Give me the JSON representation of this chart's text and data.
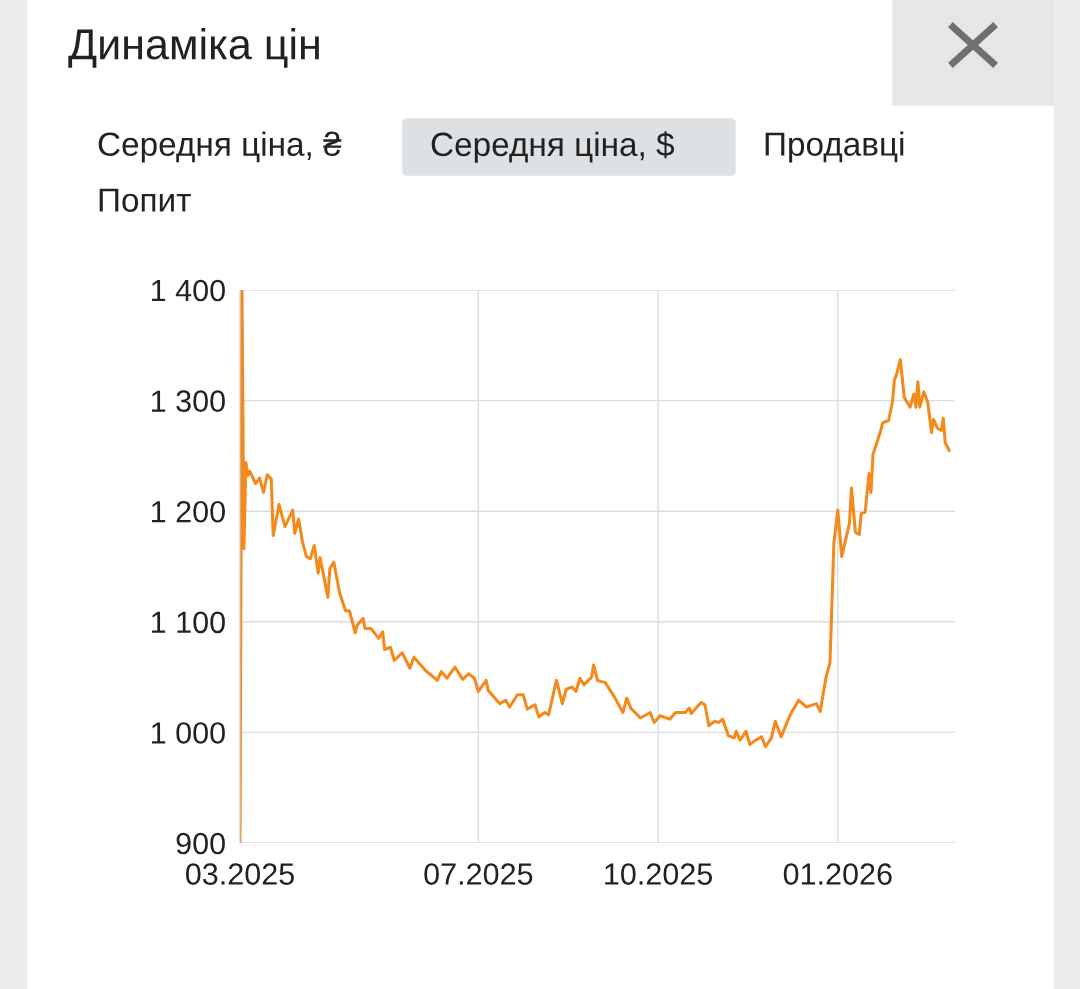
{
  "chart_data": {
    "type": "line",
    "title": "Динаміка цін",
    "annotations": [
      "Середня ціна, ₴",
      "Середня ціна, $",
      "Продавці",
      "Попит"
    ],
    "x": [
      "2025-03-01",
      "2025-03-02",
      "2025-03-03",
      "2025-03-04",
      "2025-03-05",
      "2025-03-06",
      "2025-03-09",
      "2025-03-11",
      "2025-03-13",
      "2025-03-15",
      "2025-03-17",
      "2025-03-18",
      "2025-03-21",
      "2025-03-24",
      "2025-03-28",
      "2025-03-29",
      "2025-03-31",
      "2025-04-02",
      "2025-04-04",
      "2025-04-06",
      "2025-04-08",
      "2025-04-10",
      "2025-04-11",
      "2025-04-15",
      "2025-04-16",
      "2025-04-18",
      "2025-04-21",
      "2025-04-24",
      "2025-04-26",
      "2025-04-29",
      "2025-04-30",
      "2025-05-03",
      "2025-05-04",
      "2025-05-07",
      "2025-05-11",
      "2025-05-13",
      "2025-05-14",
      "2025-05-17",
      "2025-05-19",
      "2025-05-23",
      "2025-05-27",
      "2025-05-29",
      "2025-06-04",
      "2025-06-10",
      "2025-06-12",
      "2025-06-15",
      "2025-06-19",
      "2025-06-23",
      "2025-06-26",
      "2025-06-29",
      "2025-07-01",
      "2025-07-05",
      "2025-07-06",
      "2025-07-12",
      "2025-07-15",
      "2025-07-17",
      "2025-07-21",
      "2025-07-24",
      "2025-07-26",
      "2025-07-30",
      "2025-08-01",
      "2025-08-04",
      "2025-08-06",
      "2025-08-10",
      "2025-08-13",
      "2025-08-15",
      "2025-08-18",
      "2025-08-20",
      "2025-08-22",
      "2025-08-24",
      "2025-08-28",
      "2025-08-29",
      "2025-08-31",
      "2025-09-04",
      "2025-09-09",
      "2025-09-13",
      "2025-09-15",
      "2025-09-17",
      "2025-09-22",
      "2025-09-27",
      "2025-09-29",
      "2025-10-02",
      "2025-10-07",
      "2025-10-10",
      "2025-10-15",
      "2025-10-17",
      "2025-10-18",
      "2025-10-23",
      "2025-10-25",
      "2025-10-27",
      "2025-10-30",
      "2025-11-01",
      "2025-11-03",
      "2025-11-06",
      "2025-11-09",
      "2025-11-10",
      "2025-11-12",
      "2025-11-15",
      "2025-11-17",
      "2025-11-20",
      "2025-11-23",
      "2025-11-25",
      "2025-11-28",
      "2025-11-30",
      "2025-12-03",
      "2025-12-06",
      "2025-12-08",
      "2025-12-12",
      "2025-12-16",
      "2025-12-21",
      "2025-12-23",
      "2025-12-26",
      "2025-12-28",
      "2025-12-30",
      "2026-01-01",
      "2026-01-03",
      "2026-01-07",
      "2026-01-08",
      "2026-01-10",
      "2026-01-12",
      "2026-01-13",
      "2026-01-15",
      "2026-01-17",
      "2026-01-18",
      "2026-01-19",
      "2026-01-23",
      "2026-01-24",
      "2026-01-27",
      "2026-01-29",
      "2026-01-30",
      "2026-01-31",
      "2026-02-02",
      "2026-02-04",
      "2026-02-07",
      "2026-02-09",
      "2026-02-10",
      "2026-02-11",
      "2026-02-12",
      "2026-02-14",
      "2026-02-16",
      "2026-02-18",
      "2026-02-19",
      "2026-02-21",
      "2026-02-23",
      "2026-02-24",
      "2026-02-25",
      "2026-02-27"
    ],
    "series": [
      {
        "color": "#f28a1c",
        "values": [
          900,
          1400,
          1166,
          1244,
          1232,
          1236,
          1225,
          1230,
          1217,
          1233,
          1229,
          1178,
          1206,
          1186,
          1201,
          1180,
          1193,
          1172,
          1159,
          1157,
          1169,
          1144,
          1158,
          1122,
          1148,
          1154,
          1126,
          1110,
          1110,
          1090,
          1097,
          1103,
          1094,
          1094,
          1085,
          1091,
          1075,
          1077,
          1065,
          1072,
          1058,
          1068,
          1056,
          1047,
          1055,
          1049,
          1059,
          1048,
          1053,
          1049,
          1037,
          1047,
          1038,
          1026,
          1029,
          1023,
          1034,
          1034,
          1021,
          1025,
          1014,
          1018,
          1016,
          1047,
          1026,
          1039,
          1041,
          1037,
          1049,
          1043,
          1050,
          1061,
          1047,
          1045,
          1031,
          1018,
          1031,
          1022,
          1013,
          1018,
          1009,
          1015,
          1012,
          1018,
          1018,
          1022,
          1017,
          1027,
          1025,
          1006,
          1010,
          1009,
          1012,
          997,
          995,
          1001,
          993,
          1001,
          989,
          993,
          996,
          987,
          995,
          1010,
          996,
          1009,
          1017,
          1029,
          1023,
          1026,
          1019,
          1050,
          1063,
          1171,
          1201,
          1159,
          1189,
          1221,
          1181,
          1179,
          1198,
          1199,
          1234,
          1217,
          1251,
          1273,
          1280,
          1282,
          1299,
          1319,
          1323,
          1337,
          1303,
          1294,
          1306,
          1294,
          1317,
          1294,
          1308,
          1299,
          1271,
          1283,
          1275,
          1273,
          1284,
          1262,
          1255
        ]
      }
    ],
    "xlim": [
      "2025-03-01",
      "2026-03-02"
    ],
    "xticks": [
      {
        "value": "2025-03-01",
        "label": "03.2025"
      },
      {
        "value": "2025-07-01",
        "label": "07.2025"
      },
      {
        "value": "2025-10-01",
        "label": "10.2025"
      },
      {
        "value": "2026-01-01",
        "label": "01.2026"
      }
    ],
    "ylim": [
      900,
      1400
    ],
    "yticks": [
      {
        "value": 900,
        "label": "900"
      },
      {
        "value": 1000,
        "label": "1 000"
      },
      {
        "value": 1100,
        "label": "1 100"
      },
      {
        "value": 1200,
        "label": "1 200"
      },
      {
        "value": 1300,
        "label": "1 300"
      },
      {
        "value": 1400,
        "label": "1 400"
      }
    ],
    "grid": true,
    "marker": "none",
    "line_style": "solid"
  }
}
